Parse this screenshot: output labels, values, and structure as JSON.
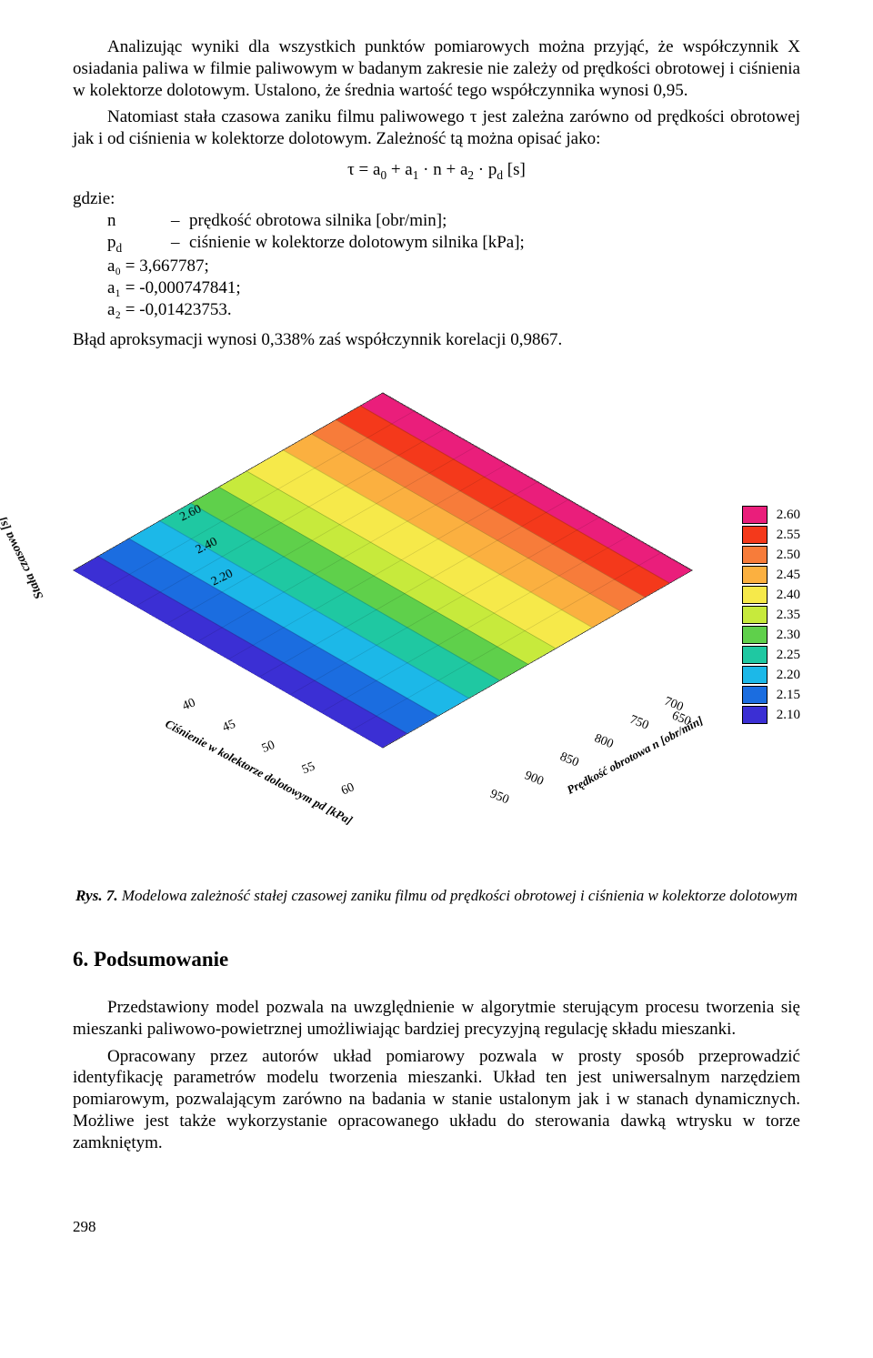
{
  "paragraphs": {
    "p1": "Analizując wyniki dla wszystkich punktów pomiarowych można przyjąć, że współczynnik X osiadania paliwa w filmie paliwowym w badanym zakresie nie zależy od prędkości obrotowej i ciśnienia w kolektorze dolotowym. Ustalono, że średnia wartość tego współczynnika wynosi 0,95.",
    "p2": "Natomiast stała czasowa zaniku filmu paliwowego τ jest zależna zarówno od prędkości obrotowej jak i od ciśnienia w kolektorze dolotowym. Zależność tą można opisać jako:",
    "formula": "τ = a₀ + a₁ · n + a₂ · pd [s]",
    "where_label": "gdzie:",
    "where": [
      {
        "sym": "n",
        "txt": "prędkość obrotowa silnika [obr/min];"
      },
      {
        "sym": "pd",
        "txt": "ciśnienie w kolektorze dolotowym silnika [kPa];"
      }
    ],
    "coefs": [
      "a₀ = 3,667787;",
      "a₁ = -0,000747841;",
      "a₂ = -0,01423753."
    ],
    "p3": "Błąd aproksymacji wynosi 0,338% zaś współczynnik korelacji 0,9867."
  },
  "figure": {
    "z_title": "Stała czasowa [s]",
    "z_ticks": [
      "2.60",
      "2.40",
      "2.20"
    ],
    "x_title": "Ciśnienie w kolektorze dolotowym pd [kPa]",
    "x_ticks": [
      "40",
      "45",
      "50",
      "55",
      "60"
    ],
    "y_title": "Prędkość obrotowa n [obr/min]",
    "y_ticks": [
      "950",
      "900",
      "850",
      "800",
      "750",
      "700",
      "650"
    ],
    "bands": [
      {
        "color": "#ea1e7b",
        "h": 7
      },
      {
        "color": "#f4391b",
        "h": 8
      },
      {
        "color": "#f77c3a",
        "h": 8
      },
      {
        "color": "#fbb040",
        "h": 9
      },
      {
        "color": "#f6e94a",
        "h": 12
      },
      {
        "color": "#c7ea3c",
        "h": 9
      },
      {
        "color": "#5fd04b",
        "h": 9
      },
      {
        "color": "#1fc8a2",
        "h": 10
      },
      {
        "color": "#1cb8e8",
        "h": 10
      },
      {
        "color": "#1b6de0",
        "h": 10
      },
      {
        "color": "#3b2fd4",
        "h": 8
      }
    ],
    "legend": [
      {
        "color": "#ea1e7b",
        "label": "2.60"
      },
      {
        "color": "#f4391b",
        "label": "2.55"
      },
      {
        "color": "#f77c3a",
        "label": "2.50"
      },
      {
        "color": "#fbb040",
        "label": "2.45"
      },
      {
        "color": "#f6e94a",
        "label": "2.40"
      },
      {
        "color": "#c7ea3c",
        "label": "2.35"
      },
      {
        "color": "#5fd04b",
        "label": "2.30"
      },
      {
        "color": "#1fc8a2",
        "label": "2.25"
      },
      {
        "color": "#1cb8e8",
        "label": "2.20"
      },
      {
        "color": "#1b6de0",
        "label": "2.15"
      },
      {
        "color": "#3b2fd4",
        "label": "2.10"
      }
    ],
    "caption_bold": "Rys. 7.",
    "caption": " Modelowa zależność stałej czasowej zaniku filmu od prędkości obrotowej i ciśnienia w kolektorze dolotowym"
  },
  "section": {
    "title": "6. Podsumowanie",
    "p1": "Przedstawiony model pozwala na uwzględnienie w algorytmie sterującym procesu tworzenia się mieszanki paliwowo-powietrznej umożliwiając bardziej precyzyjną regulację składu mieszanki.",
    "p2": "Opracowany przez autorów układ pomiarowy pozwala w prosty sposób przeprowadzić identyfikację parametrów modelu tworzenia mieszanki. Układ ten jest uniwersalnym narzędziem pomiarowym, pozwalającym zarówno na badania w stanie ustalonym jak i w stanach dynamicznych. Możliwe jest także wykorzystanie opracowanego układu do sterowania dawką wtrysku w torze zamkniętym."
  },
  "pageno": "298"
}
